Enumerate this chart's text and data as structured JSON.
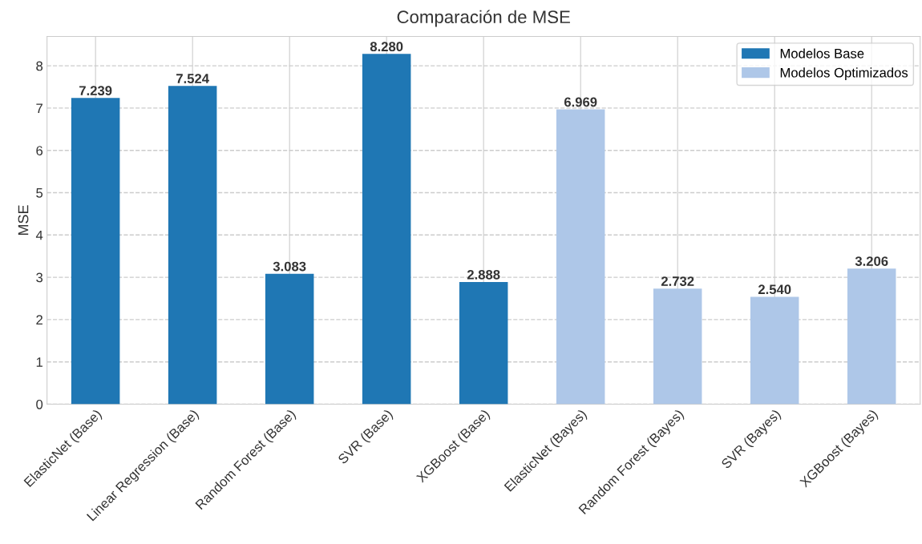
{
  "chart_data": {
    "type": "bar",
    "title": "Comparación de MSE",
    "ylabel": "MSE",
    "categories": [
      "ElasticNet (Base)",
      "Linear Regression (Base)",
      "Random Forest (Base)",
      "SVR (Base)",
      "XGBoost (Base)",
      "ElasticNet (Bayes)",
      "Random Forest (Bayes)",
      "SVR (Bayes)",
      "XGBoost (Bayes)"
    ],
    "series": [
      {
        "name": "Modelos Base",
        "color": "#1f77b4",
        "values": [
          7.239,
          7.524,
          3.083,
          8.28,
          2.888,
          null,
          null,
          null,
          null
        ],
        "value_labels": [
          "7.239",
          "7.524",
          "3.083",
          "8.280",
          "2.888",
          null,
          null,
          null,
          null
        ]
      },
      {
        "name": "Modelos Optimizados",
        "color": "#aec7e8",
        "values": [
          null,
          null,
          null,
          null,
          null,
          6.969,
          2.732,
          2.54,
          3.206
        ],
        "value_labels": [
          null,
          null,
          null,
          null,
          null,
          "6.969",
          "2.732",
          "2.540",
          "3.206"
        ]
      }
    ],
    "ylim": [
      0,
      8.694
    ],
    "yticks": [
      0,
      1,
      2,
      3,
      4,
      5,
      6,
      7,
      8
    ],
    "grid": true,
    "legend": "top right"
  }
}
